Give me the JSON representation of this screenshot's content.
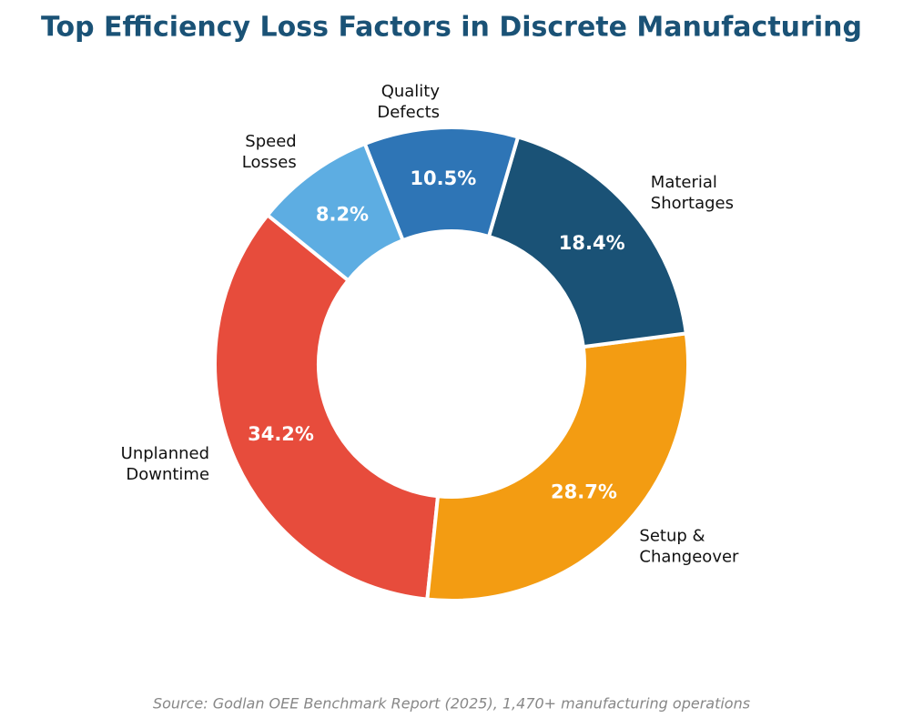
{
  "chart_data": {
    "type": "donut",
    "title": "Top Efficiency Loss Factors in Discrete Manufacturing",
    "categories": [
      "Unplanned\nDowntime",
      "Setup &\nChangeover",
      "Material\nShortages",
      "Quality\nDefects",
      "Speed\nLosses"
    ],
    "values": [
      34.2,
      28.7,
      18.4,
      10.5,
      8.2
    ],
    "value_labels": [
      "34.2%",
      "28.7%",
      "18.4%",
      "10.5%",
      "8.2%"
    ],
    "colors": [
      "#e74c3c",
      "#f39c12",
      "#1a5276",
      "#2e75b6",
      "#5dade2"
    ],
    "source": "Source: Godlan OEE Benchmark Report (2025), 1,470+ manufacturing operations"
  }
}
